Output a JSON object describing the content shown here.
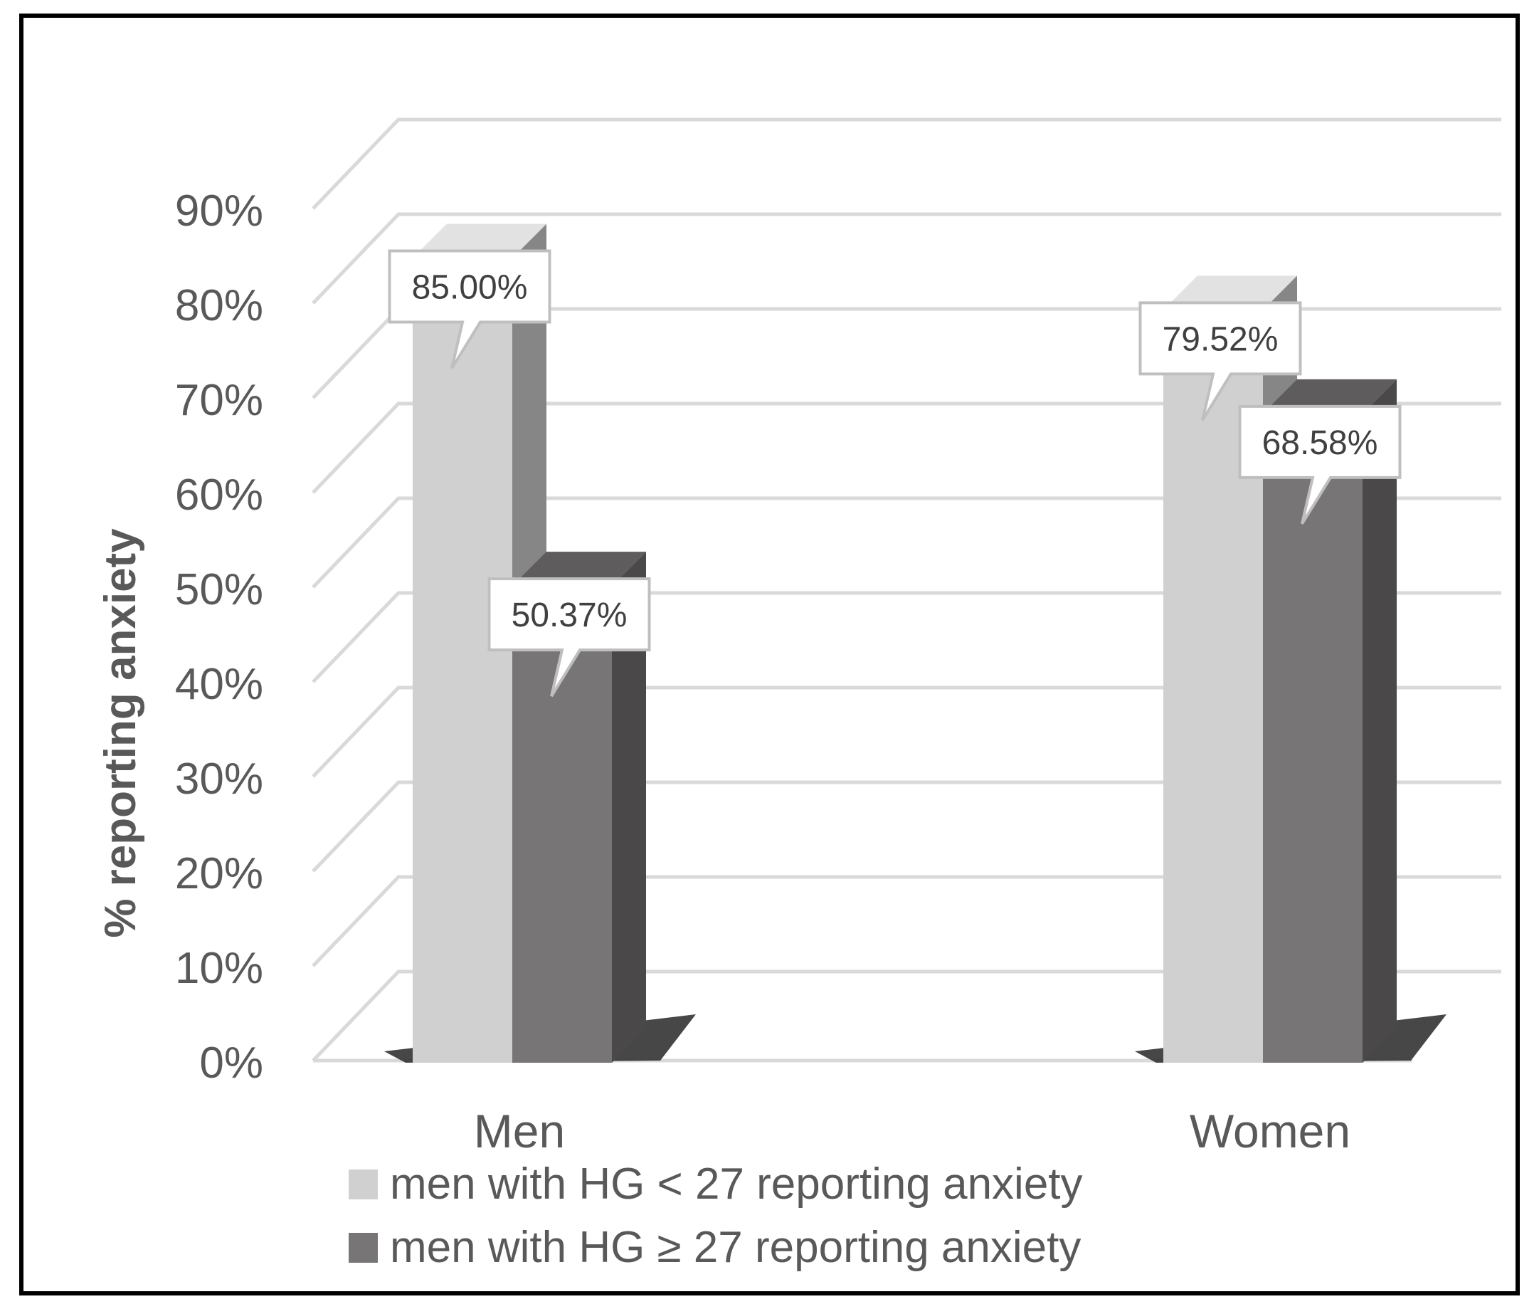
{
  "chart_data": {
    "type": "bar",
    "categories": [
      "Men",
      "Women"
    ],
    "series": [
      {
        "name": "men with HG < 27 reporting anxiety",
        "values": [
          85.0,
          79.52
        ],
        "labels": [
          "85.00%",
          "79.52%"
        ],
        "color": "#d0d0d0",
        "side_color": "#868686",
        "top_color": "#e2e2e2"
      },
      {
        "name": "men with HG ≥ 27 reporting anxiety",
        "values": [
          50.37,
          68.58
        ],
        "labels": [
          "50.37%",
          "68.58%"
        ],
        "color": "#777575",
        "side_color": "#4a4848",
        "top_color": "#5e5c5c"
      }
    ],
    "ylabel": "% reporting anxiety",
    "xlabel": "",
    "ylim": [
      0,
      90
    ],
    "yticks": [
      0,
      10,
      20,
      30,
      40,
      50,
      60,
      70,
      80,
      90
    ],
    "ytick_labels": [
      "0%",
      "10%",
      "20%",
      "30%",
      "40%",
      "50%",
      "60%",
      "70%",
      "80%",
      "90%"
    ],
    "grid": true,
    "legend_position": "bottom",
    "style": "3d-clustered-column",
    "colors": {
      "grid": "#d9d9d9",
      "frame": "#000000",
      "text": "#595959"
    }
  }
}
